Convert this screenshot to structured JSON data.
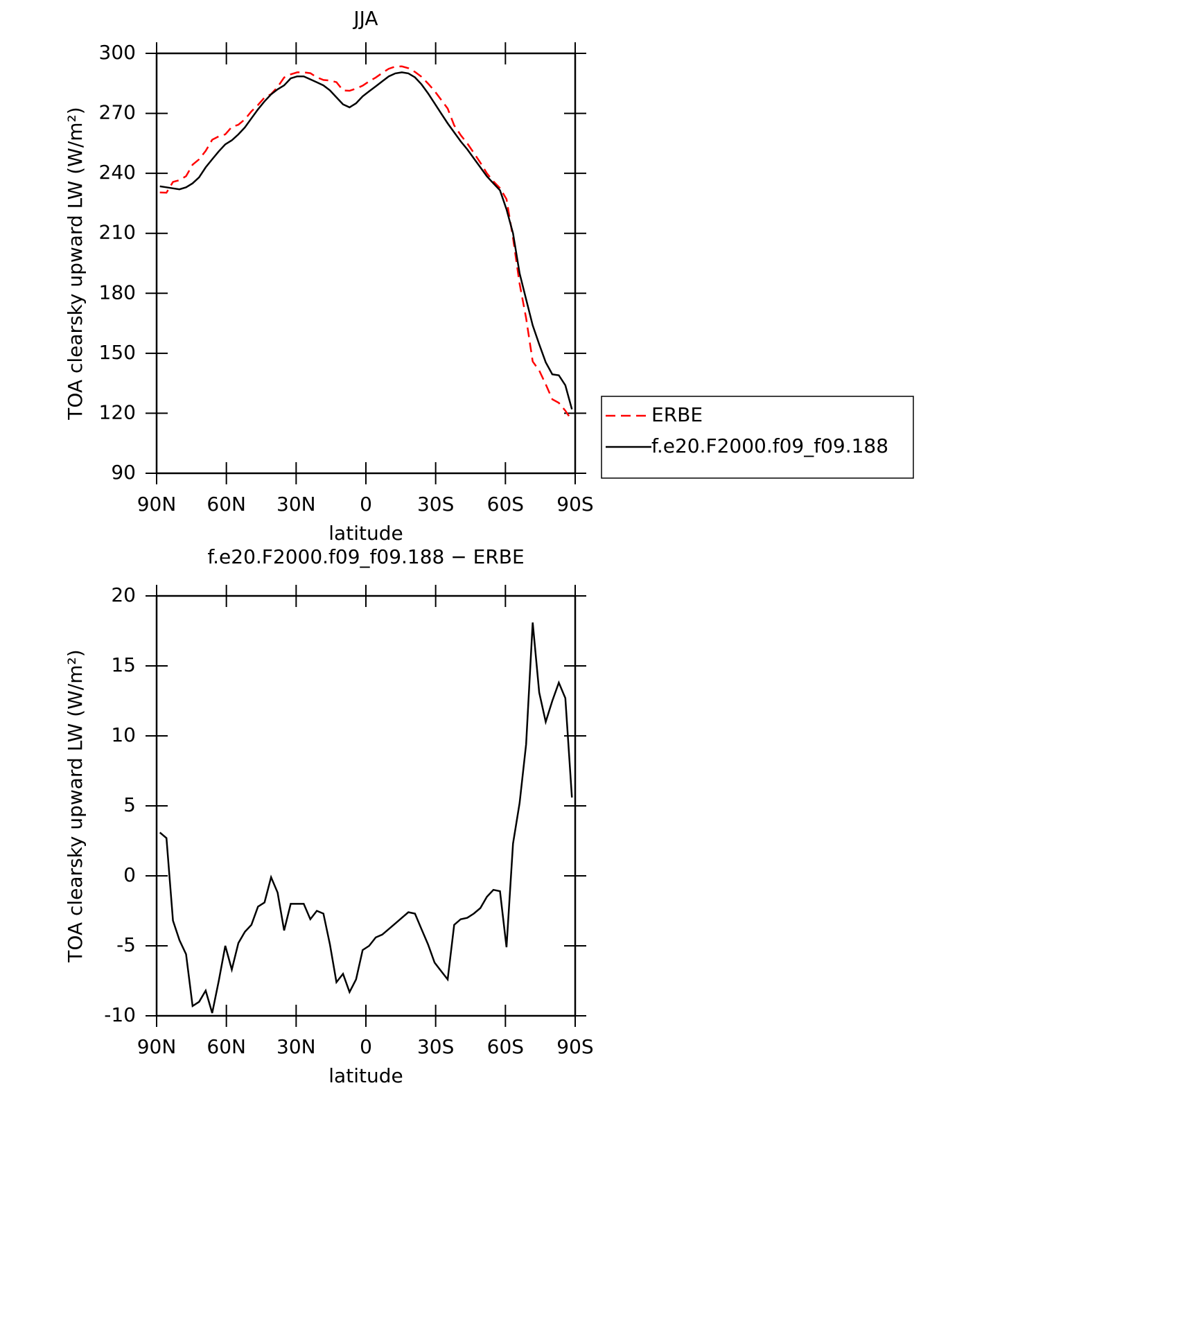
{
  "chart_data": [
    {
      "type": "line",
      "title": "JJA",
      "xlabel": "latitude",
      "ylabel": "TOA clearsky upward LW (W/m²)",
      "x": [
        88.59,
        85.78,
        82.97,
        80.16,
        77.34,
        74.53,
        71.72,
        68.91,
        66.09,
        63.28,
        60.47,
        57.66,
        54.84,
        52.03,
        49.22,
        46.41,
        43.59,
        40.78,
        37.97,
        35.16,
        32.34,
        29.53,
        26.72,
        23.91,
        21.09,
        18.28,
        15.47,
        12.66,
        9.84,
        7.03,
        4.22,
        1.41,
        -1.41,
        -4.22,
        -7.03,
        -9.84,
        -12.66,
        -15.47,
        -18.28,
        -21.09,
        -23.91,
        -26.72,
        -29.53,
        -32.34,
        -35.16,
        -37.97,
        -40.78,
        -43.59,
        -46.41,
        -49.22,
        -52.03,
        -54.84,
        -57.66,
        -60.47,
        -63.28,
        -66.09,
        -68.91,
        -71.72,
        -74.53,
        -77.34,
        -80.16,
        -82.97,
        -85.78,
        -88.59
      ],
      "xlim": [
        90,
        -90
      ],
      "ylim": [
        90,
        300
      ],
      "xticks": [
        {
          "value": 90,
          "label": "90N"
        },
        {
          "value": 60,
          "label": "60N"
        },
        {
          "value": 30,
          "label": "30N"
        },
        0,
        {
          "value": -30,
          "label": "30S"
        },
        {
          "value": -60,
          "label": "60S"
        },
        {
          "value": -90,
          "label": "90S"
        }
      ],
      "yticks": [
        90,
        120,
        150,
        180,
        210,
        240,
        270,
        300
      ],
      "legend": "right",
      "series": [
        {
          "name": "ERBE",
          "color": "#ff0000",
          "linestyle": "dashed",
          "values": [
            230.4,
            230.3,
            235.7,
            236.6,
            238.6,
            244.3,
            247,
            251.2,
            256.8,
            258.5,
            259.5,
            263.2,
            264.3,
            267,
            271,
            274.2,
            277.9,
            279.6,
            283.2,
            287.9,
            289.5,
            290.5,
            290.5,
            290.1,
            288,
            286.7,
            286.4,
            285.6,
            281.5,
            281.3,
            282.4,
            283.8,
            286,
            287.9,
            290.2,
            292.3,
            293.4,
            293.5,
            292.6,
            290.7,
            288.3,
            284.9,
            281.2,
            276.8,
            272.4,
            264,
            259.1,
            255,
            250.2,
            245.3,
            240,
            236,
            232.6,
            227.1,
            207.7,
            184.8,
            167.6,
            145.9,
            141.4,
            134.5,
            127,
            125.2,
            121.3,
            116.4
          ]
        },
        {
          "name": "f.e20.F2000.f09_f09.188",
          "color": "#000000",
          "linestyle": "solid",
          "values": [
            233.5,
            233,
            232.5,
            232,
            233,
            235,
            238,
            243,
            247,
            251,
            254.5,
            256.5,
            259.5,
            263,
            267.5,
            272,
            276,
            279.5,
            282,
            284,
            287.5,
            288.5,
            288.5,
            287,
            285.5,
            284,
            281.5,
            278,
            274.5,
            273,
            275,
            278.5,
            281,
            283.5,
            286,
            288.5,
            290,
            290.5,
            290,
            288,
            284.5,
            280,
            275,
            270,
            265,
            260.5,
            256,
            252,
            247.5,
            243,
            238.5,
            235,
            231.5,
            222,
            210,
            190,
            177,
            164,
            154.5,
            145.5,
            139.5,
            139,
            134,
            122
          ]
        }
      ]
    },
    {
      "type": "line",
      "title": "f.e20.F2000.f09_f09.188 − ERBE",
      "xlabel": "latitude",
      "ylabel": "TOA clearsky upward LW (W/m²)",
      "x": [
        88.59,
        85.78,
        82.97,
        80.16,
        77.34,
        74.53,
        71.72,
        68.91,
        66.09,
        63.28,
        60.47,
        57.66,
        54.84,
        52.03,
        49.22,
        46.41,
        43.59,
        40.78,
        37.97,
        35.16,
        32.34,
        29.53,
        26.72,
        23.91,
        21.09,
        18.28,
        15.47,
        12.66,
        9.84,
        7.03,
        4.22,
        1.41,
        -1.41,
        -4.22,
        -7.03,
        -9.84,
        -12.66,
        -15.47,
        -18.28,
        -21.09,
        -23.91,
        -26.72,
        -29.53,
        -32.34,
        -35.16,
        -37.97,
        -40.78,
        -43.59,
        -46.41,
        -49.22,
        -52.03,
        -54.84,
        -57.66,
        -60.47,
        -63.28,
        -66.09,
        -68.91,
        -71.72,
        -74.53,
        -77.34,
        -80.16,
        -82.97,
        -85.78,
        -88.59
      ],
      "xlim": [
        90,
        -90
      ],
      "ylim": [
        -10,
        20
      ],
      "xticks": [
        {
          "value": 90,
          "label": "90N"
        },
        {
          "value": 60,
          "label": "60N"
        },
        {
          "value": 30,
          "label": "30N"
        },
        0,
        {
          "value": -30,
          "label": "30S"
        },
        {
          "value": -60,
          "label": "60S"
        },
        {
          "value": -90,
          "label": "90S"
        }
      ],
      "yticks": [
        -10,
        -5,
        0,
        5,
        10,
        15,
        20
      ],
      "series": [
        {
          "color": "#000000",
          "linestyle": "solid",
          "values": [
            3.1,
            2.7,
            -3.2,
            -4.6,
            -5.6,
            -9.3,
            -9.0,
            -8.2,
            -9.8,
            -7.5,
            -5.0,
            -6.7,
            -4.8,
            -4.0,
            -3.5,
            -2.2,
            -1.9,
            -0.1,
            -1.2,
            -3.9,
            -2.0,
            -2.0,
            -2.0,
            -3.1,
            -2.5,
            -2.7,
            -4.9,
            -7.6,
            -7.0,
            -8.3,
            -7.4,
            -5.3,
            -5.0,
            -4.4,
            -4.2,
            -3.8,
            -3.4,
            -3.0,
            -2.6,
            -2.7,
            -3.8,
            -4.9,
            -6.2,
            -6.8,
            -7.4,
            -3.5,
            -3.1,
            -3.0,
            -2.7,
            -2.3,
            -1.5,
            -1.0,
            -1.1,
            -5.1,
            2.3,
            5.2,
            9.4,
            18.1,
            13.1,
            11.0,
            12.5,
            13.8,
            12.7,
            5.6
          ]
        }
      ]
    }
  ]
}
